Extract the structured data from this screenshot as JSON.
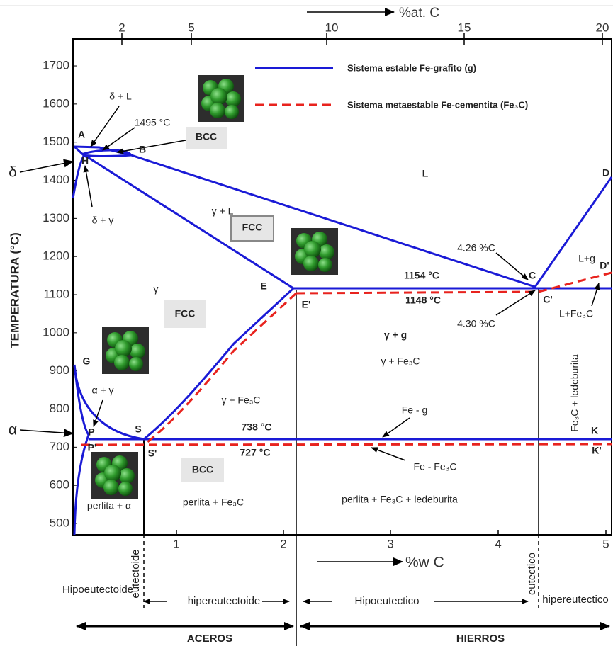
{
  "top_axis": {
    "title": "%at. C",
    "ticks": [
      2,
      5,
      10,
      15,
      20
    ]
  },
  "left_axis": {
    "title": "TEMPERATURA (°C)",
    "ticks": [
      1700,
      1600,
      1500,
      1400,
      1300,
      1200,
      1100,
      1000,
      900,
      800,
      700,
      600,
      500
    ]
  },
  "bottom_axis": {
    "title": "%w C",
    "ticks": [
      1,
      2,
      3,
      4,
      5
    ]
  },
  "legend": [
    "Sistema estable  Fe-grafito (g)",
    "Sistema metaestable  Fe-cementita (Fe₃C)"
  ],
  "labels": [
    "δ +  L",
    "1495 °C",
    "BCC",
    "A",
    "B",
    "H",
    "δ",
    "δ + γ",
    "γ +  L",
    "FCC",
    "L",
    "D",
    "4.26 %C",
    "C",
    "L+g",
    "D'",
    "1154 °C",
    "1148 °C",
    "E",
    "E'",
    "γ",
    "FCC",
    "4.30 %C",
    "C'",
    "L+Fe₃C",
    "γ + g",
    "γ + Fe₃C",
    "G",
    "α + γ",
    "γ + Fe₃C",
    "738 °C",
    "Fe - g",
    "S",
    "P",
    "α",
    "K",
    "P'",
    "S'",
    "727 °C",
    "Fe - Fe₃C",
    "K'",
    "BCC",
    "perlita + Fe₃C",
    "perlita + Fe₃C + ledeburita",
    "Fe₃C + ledeburita",
    "perlita +  α"
  ],
  "bottom_regions": [
    "Hipoeutectoide",
    "hipereutectoide",
    "Hipoeutectico",
    "hipereutectico",
    "eutectoide",
    "eutectico"
  ],
  "groups": [
    "ACEROS",
    "HIERROS"
  ]
}
